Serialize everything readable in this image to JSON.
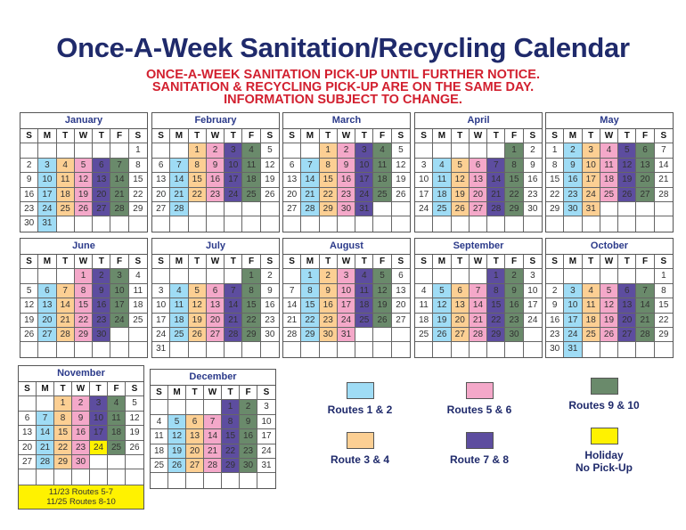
{
  "title": "Once-A-Week Sanitation/Recycling Calendar",
  "notices": [
    "ONCE-A-WEEK SANITATION PICK-UP UNTIL FURTHER NOTICE.",
    "SANITATION & RECYCLING PICK-UP ARE ON THE SAME DAY.",
    "INFORMATION SUBJECT TO CHANGE."
  ],
  "day_names": [
    "S",
    "M",
    "T",
    "W",
    "T",
    "F",
    "S"
  ],
  "colors": {
    "r12": "#9fdcf5",
    "r34": "#fccf93",
    "r56": "#f4a8c9",
    "r78": "#5d4d9f",
    "r910": "#6a8a6b",
    "holiday": "#fff200"
  },
  "weekday_routes": [
    "",
    "r12",
    "r34",
    "r56",
    "r78",
    "r910",
    ""
  ],
  "months": [
    {
      "name": "January",
      "first_weekday": 6,
      "days": 31
    },
    {
      "name": "February",
      "first_weekday": 2,
      "days": 28
    },
    {
      "name": "March",
      "first_weekday": 2,
      "days": 31
    },
    {
      "name": "April",
      "first_weekday": 5,
      "days": 30
    },
    {
      "name": "May",
      "first_weekday": 0,
      "days": 31
    },
    {
      "name": "June",
      "first_weekday": 3,
      "days": 30
    },
    {
      "name": "July",
      "first_weekday": 5,
      "days": 31
    },
    {
      "name": "August",
      "first_weekday": 1,
      "days": 31
    },
    {
      "name": "September",
      "first_weekday": 4,
      "days": 30
    },
    {
      "name": "October",
      "first_weekday": 6,
      "days": 31
    },
    {
      "name": "November",
      "first_weekday": 2,
      "days": 30,
      "holidays": [
        24
      ],
      "note": [
        "11/23 Routes 5-7",
        "11/25 Routes 8-10"
      ]
    },
    {
      "name": "December",
      "first_weekday": 4,
      "days": 31
    }
  ],
  "legend": [
    {
      "key": "r12",
      "label": "Routes 1 & 2"
    },
    {
      "key": "r56",
      "label": "Routes 5 & 6"
    },
    {
      "key": "r910",
      "label": "Routes 9 & 10"
    },
    {
      "key": "r34",
      "label": "Route 3 & 4"
    },
    {
      "key": "r78",
      "label": "Route 7 & 8"
    },
    {
      "key": "holiday",
      "label": "Holiday",
      "label2": "No Pick-Up"
    }
  ]
}
